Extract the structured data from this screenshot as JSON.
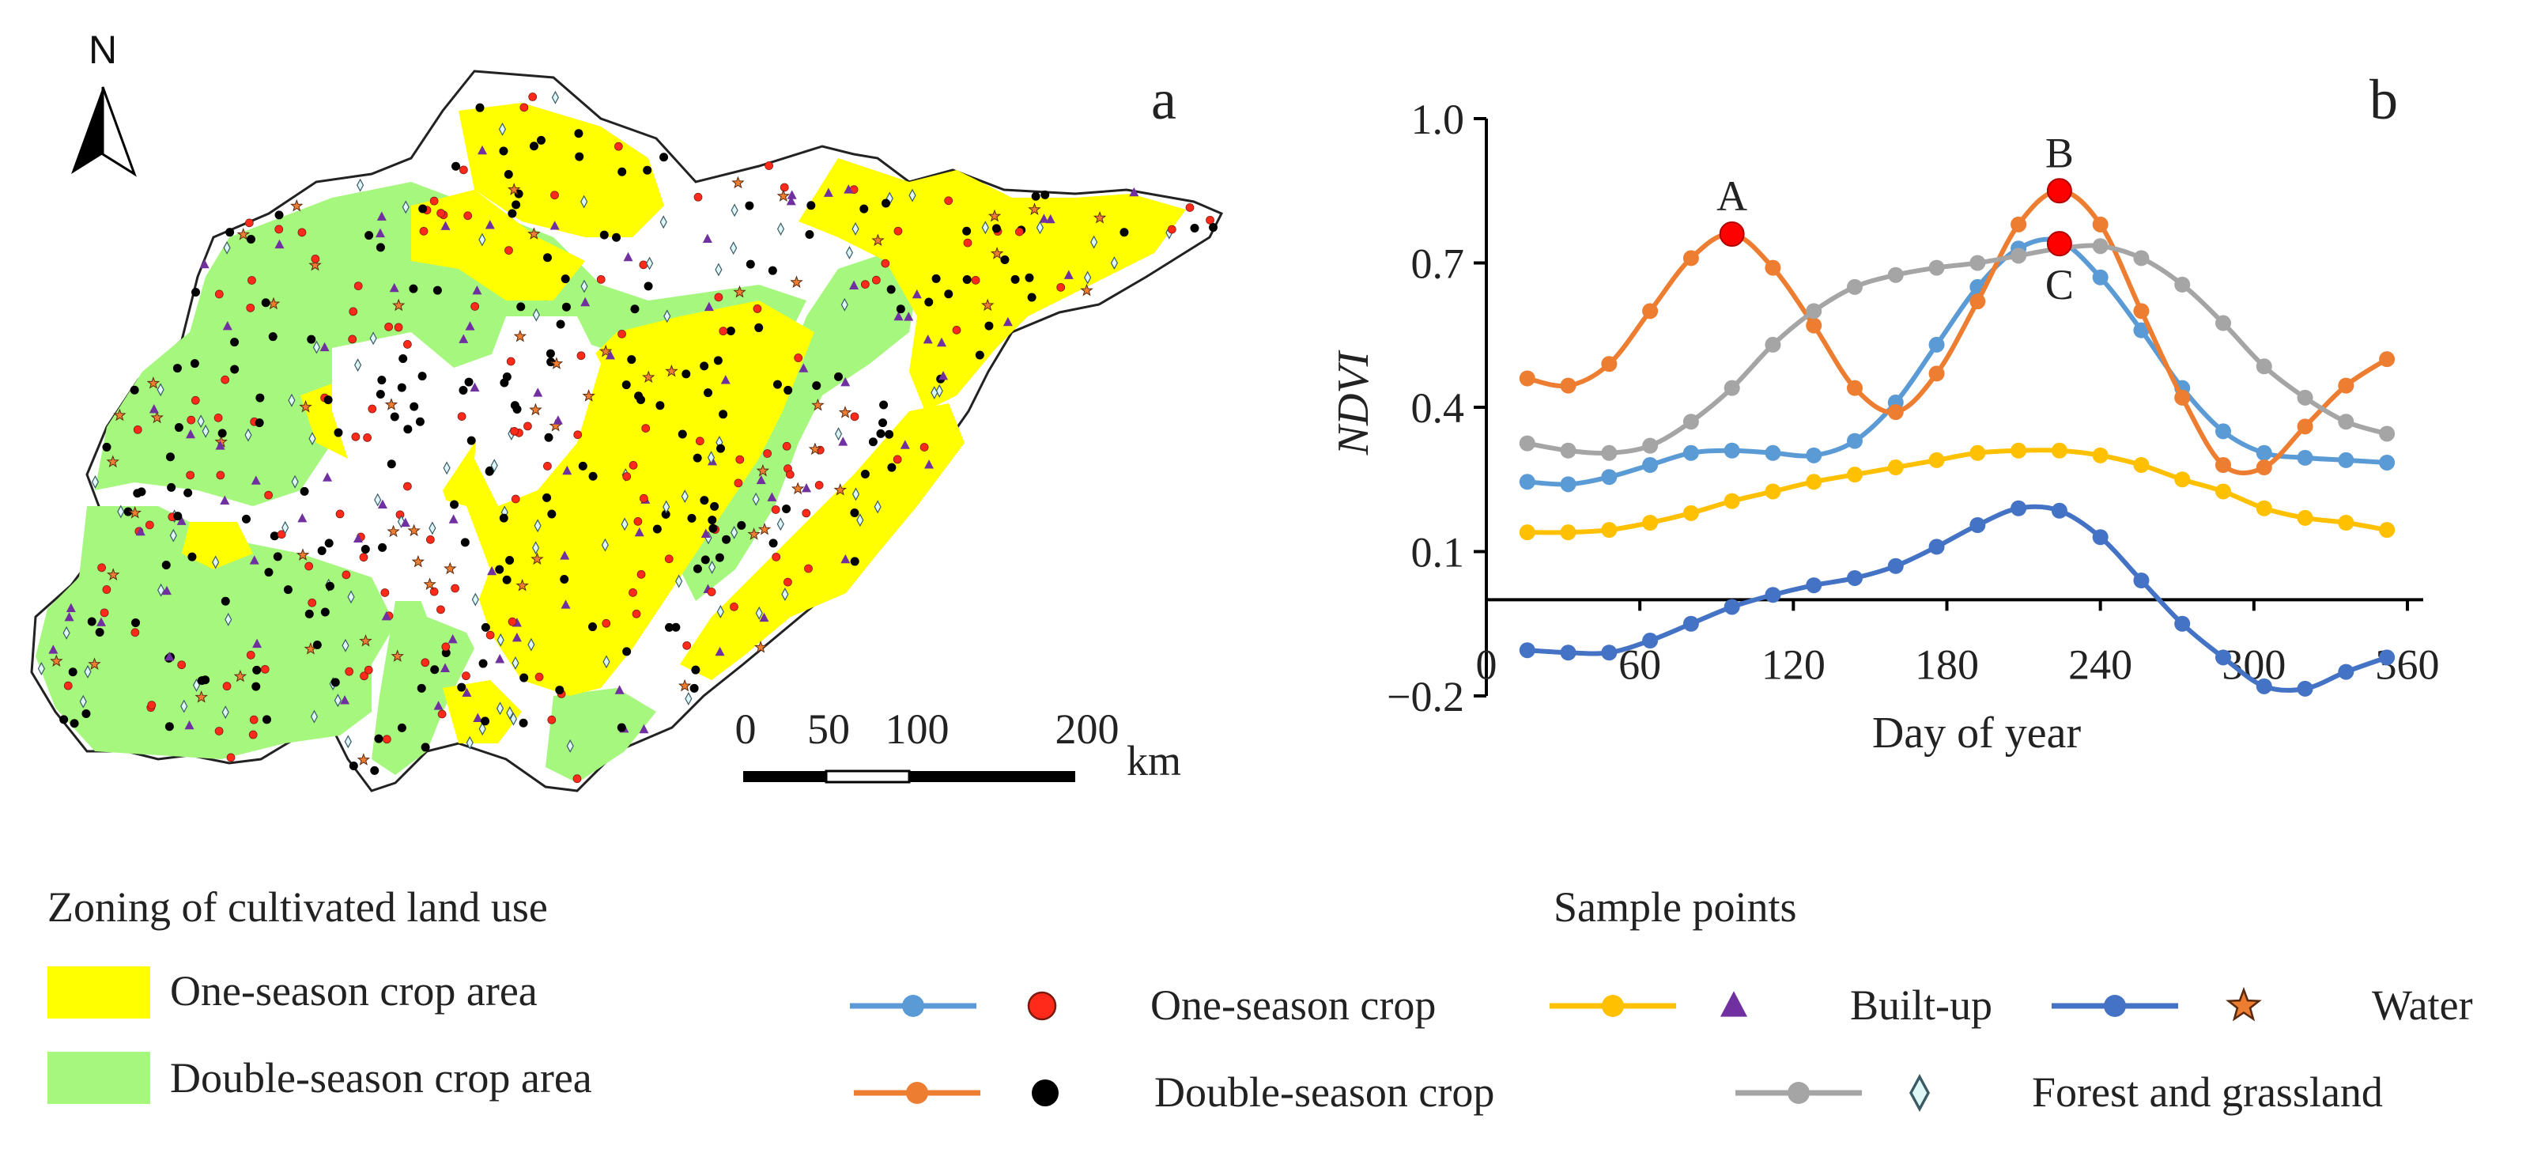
{
  "panel_a": {
    "letter": "a",
    "north_label": "N",
    "scale_ticks": [
      "0",
      "50",
      "100",
      "200"
    ],
    "scale_unit": "km",
    "colors": {
      "one_season": "#ffff00",
      "double_season": "#a6f77e",
      "outline": "#222222"
    }
  },
  "panel_b": {
    "letter": "b",
    "highlights": [
      {
        "label": "A",
        "x": 96,
        "y": 0.76
      },
      {
        "label": "B",
        "x": 224,
        "y": 0.85
      },
      {
        "label": "C",
        "x": 224,
        "y": 0.74
      }
    ]
  },
  "legend": {
    "zoning_title": "Zoning of cultivated land use",
    "zoning_items": [
      {
        "label": "One-season crop area",
        "color": "#ffff00"
      },
      {
        "label": "Double-season crop area",
        "color": "#a6f77e"
      }
    ],
    "sample_title": "Sample points",
    "sample_items": [
      {
        "label": "One-season crop",
        "line_color": "#5b9bd5",
        "marker": "red-circle",
        "marker_color": "#ff2a1a"
      },
      {
        "label": "Built-up",
        "line_color": "#ffc000",
        "marker": "purple-triangle",
        "marker_color": "#7030a0"
      },
      {
        "label": "Water",
        "line_color": "#4472c4",
        "marker": "orange-star",
        "marker_color": "#ed7d31"
      },
      {
        "label": "Double-season crop",
        "line_color": "#ed7d31",
        "marker": "black-circle",
        "marker_color": "#000000"
      },
      {
        "label": "Forest and grassland",
        "line_color": "#a5a5a5",
        "marker": "cyan-diamond",
        "marker_color": "#dff7f7"
      }
    ]
  },
  "chart_data": {
    "type": "line",
    "title": "",
    "xlabel": "Day of year",
    "ylabel": "NDVI",
    "xlim": [
      0,
      360
    ],
    "ylim": [
      -0.2,
      1.0
    ],
    "xticks": [
      0,
      60,
      120,
      180,
      240,
      300,
      360
    ],
    "xtick_labels": [
      "0",
      "60",
      "120",
      "180",
      "240",
      "300",
      "360"
    ],
    "yticks": [
      -0.2,
      0.1,
      0.4,
      0.7,
      1.0
    ],
    "ytick_labels": [
      "−0.2",
      "0.1",
      "0.4",
      "0.7",
      "1.0"
    ],
    "x": [
      0,
      16,
      32,
      48,
      64,
      80,
      96,
      112,
      128,
      144,
      160,
      176,
      192,
      208,
      224,
      240,
      256,
      272,
      288,
      304,
      320,
      336,
      352
    ],
    "series": [
      {
        "name": "One-season crop",
        "color": "#5b9bd5",
        "values": [
          null,
          0.245,
          0.24,
          0.255,
          0.28,
          0.305,
          0.31,
          0.305,
          0.3,
          0.33,
          0.41,
          0.53,
          0.65,
          0.73,
          0.745,
          0.67,
          0.56,
          0.44,
          0.35,
          0.305,
          0.295,
          0.29,
          0.285
        ]
      },
      {
        "name": "Double-season crop",
        "color": "#ed7d31",
        "values": [
          null,
          0.46,
          0.445,
          0.49,
          0.6,
          0.71,
          0.76,
          0.69,
          0.57,
          0.44,
          0.39,
          0.47,
          0.62,
          0.78,
          0.85,
          0.78,
          0.6,
          0.42,
          0.28,
          0.275,
          0.36,
          0.445,
          0.5
        ]
      },
      {
        "name": "Forest and grassland",
        "color": "#a5a5a5",
        "values": [
          null,
          0.325,
          0.31,
          0.305,
          0.32,
          0.37,
          0.44,
          0.53,
          0.6,
          0.65,
          0.675,
          0.69,
          0.7,
          0.715,
          0.73,
          0.735,
          0.71,
          0.655,
          0.575,
          0.485,
          0.42,
          0.37,
          0.345
        ]
      },
      {
        "name": "Built-up",
        "color": "#ffc000",
        "values": [
          null,
          0.14,
          0.14,
          0.145,
          0.16,
          0.18,
          0.205,
          0.225,
          0.245,
          0.26,
          0.275,
          0.29,
          0.305,
          0.31,
          0.31,
          0.3,
          0.28,
          0.25,
          0.225,
          0.19,
          0.17,
          0.16,
          0.145
        ]
      },
      {
        "name": "Water",
        "color": "#4472c4",
        "values": [
          null,
          -0.105,
          -0.11,
          -0.11,
          -0.085,
          -0.05,
          -0.015,
          0.01,
          0.03,
          0.045,
          0.07,
          0.11,
          0.155,
          0.19,
          0.185,
          0.13,
          0.04,
          -0.05,
          -0.12,
          -0.18,
          -0.185,
          -0.15,
          -0.12
        ]
      }
    ]
  }
}
